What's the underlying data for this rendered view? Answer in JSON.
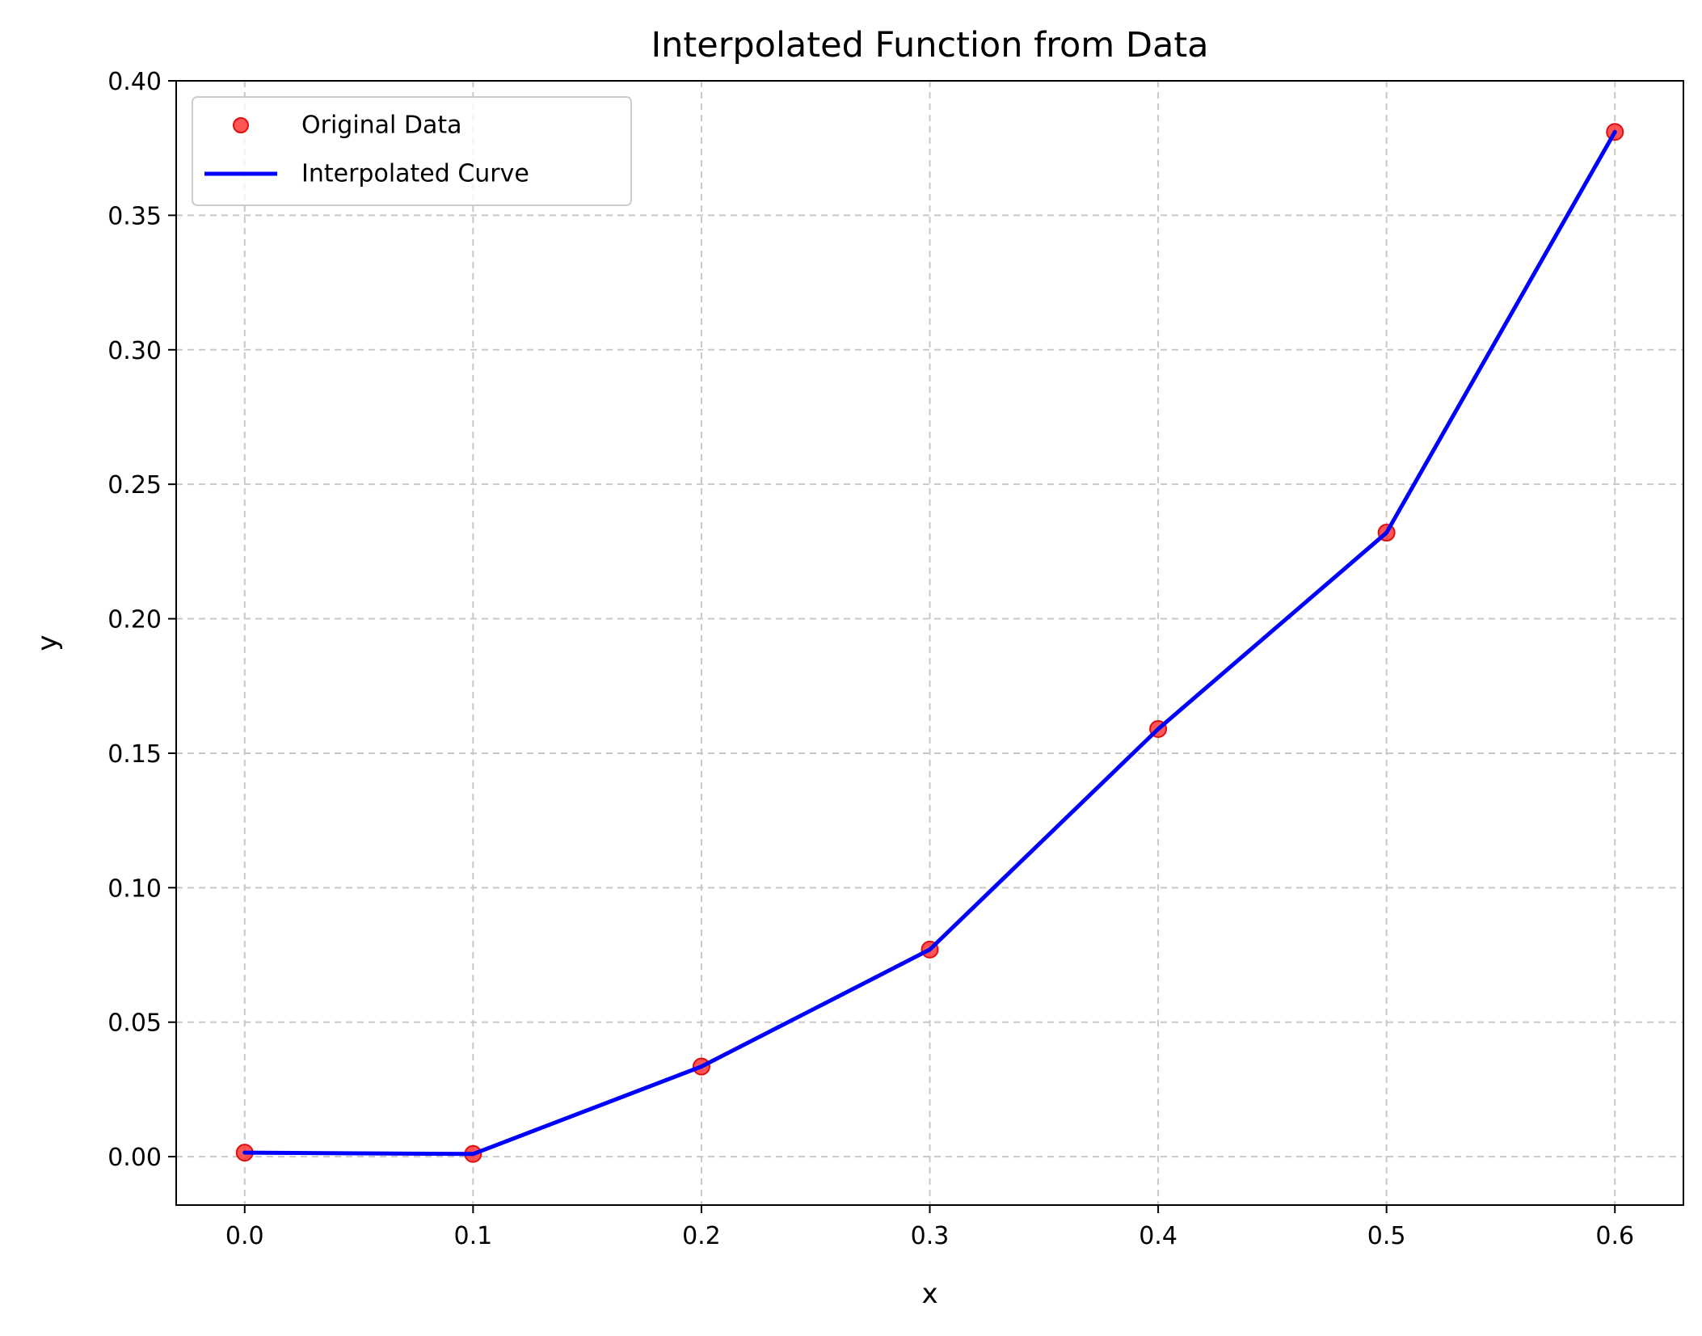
{
  "chart_data": {
    "type": "line",
    "title": "Interpolated Function from Data",
    "xlabel": "x",
    "ylabel": "y",
    "xlim": [
      -0.03,
      0.63
    ],
    "ylim": [
      -0.018,
      0.4
    ],
    "xticks": [
      0.0,
      0.1,
      0.2,
      0.3,
      0.4,
      0.5,
      0.6
    ],
    "xtick_labels": [
      "0.0",
      "0.1",
      "0.2",
      "0.3",
      "0.4",
      "0.5",
      "0.6"
    ],
    "yticks": [
      0.0,
      0.05,
      0.1,
      0.15,
      0.2,
      0.25,
      0.3,
      0.35,
      0.4
    ],
    "ytick_labels": [
      "0.00",
      "0.05",
      "0.10",
      "0.15",
      "0.20",
      "0.25",
      "0.30",
      "0.35",
      "0.40"
    ],
    "grid": true,
    "legend_position": "top-left",
    "series": [
      {
        "name": "Original Data",
        "kind": "scatter",
        "color": "#ff2a2a",
        "x": [
          0.0,
          0.1,
          0.2,
          0.3,
          0.4,
          0.5,
          0.6
        ],
        "y": [
          0.0015,
          0.001,
          0.0335,
          0.077,
          0.159,
          0.232,
          0.381
        ]
      },
      {
        "name": "Interpolated Curve",
        "kind": "line",
        "color": "#0000ff",
        "x": [
          0.0,
          0.1,
          0.2,
          0.3,
          0.4,
          0.5,
          0.6
        ],
        "y": [
          0.0015,
          0.001,
          0.0335,
          0.077,
          0.159,
          0.232,
          0.381
        ]
      }
    ]
  }
}
